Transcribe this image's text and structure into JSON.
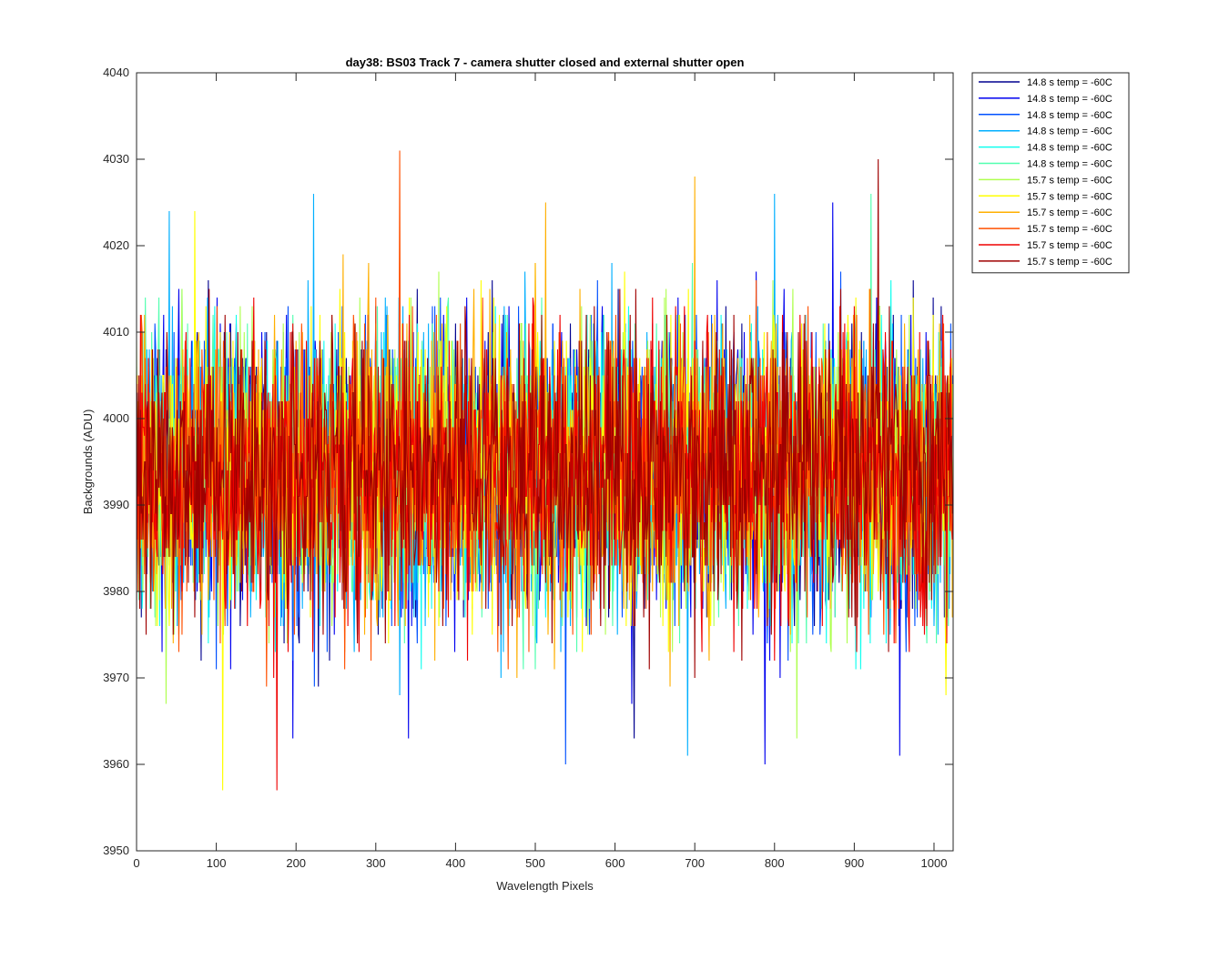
{
  "chart_data": {
    "type": "line",
    "title": "day38: BS03  Track 7 - camera shutter closed and external shutter open",
    "xlabel": "Wavelength Pixels",
    "ylabel": "Backgrounds (ADU)",
    "xlim": [
      0,
      1024
    ],
    "ylim": [
      3950,
      4040
    ],
    "xticks": [
      0,
      100,
      200,
      300,
      400,
      500,
      600,
      700,
      800,
      900,
      1000
    ],
    "yticks": [
      3950,
      3960,
      3970,
      3980,
      3990,
      4000,
      4010,
      4020,
      4030,
      4040
    ],
    "grid": false,
    "legend_position": "outside-top-right",
    "series": [
      {
        "name": "14.8 s temp = -60C",
        "color": "#00008f"
      },
      {
        "name": "14.8 s temp = -60C",
        "color": "#0000ef"
      },
      {
        "name": "14.8 s temp = -60C",
        "color": "#0050ff"
      },
      {
        "name": "14.8 s temp = -60C",
        "color": "#00afff"
      },
      {
        "name": "14.8 s temp = -60C",
        "color": "#10ffef"
      },
      {
        "name": "14.8 s temp = -60C",
        "color": "#50ffaf"
      },
      {
        "name": "15.7 s temp = -60C",
        "color": "#afff50"
      },
      {
        "name": "15.7 s temp = -60C",
        "color": "#ffff00"
      },
      {
        "name": "15.7 s temp = -60C",
        "color": "#ffaf00"
      },
      {
        "name": "15.7 s temp = -60C",
        "color": "#ff5000"
      },
      {
        "name": "15.7 s temp = -60C",
        "color": "#ef0000"
      },
      {
        "name": "15.7 s temp = -60C",
        "color": "#9f0000"
      }
    ],
    "noise_model": {
      "mean": 3994,
      "spread": 9,
      "points_per_series": 1024
    },
    "notable_extremes": [
      {
        "series": 9,
        "x": 330,
        "y": 4031
      },
      {
        "series": 11,
        "x": 930,
        "y": 4030
      },
      {
        "series": 8,
        "x": 700,
        "y": 4028
      },
      {
        "series": 3,
        "x": 222,
        "y": 4026
      },
      {
        "series": 3,
        "x": 800,
        "y": 4026
      },
      {
        "series": 5,
        "x": 921,
        "y": 4026
      },
      {
        "series": 3,
        "x": 41,
        "y": 4024
      },
      {
        "series": 7,
        "x": 73,
        "y": 4024
      },
      {
        "series": 1,
        "x": 873,
        "y": 4025
      },
      {
        "series": 8,
        "x": 513,
        "y": 4025
      },
      {
        "series": 7,
        "x": 108,
        "y": 3957
      },
      {
        "series": 10,
        "x": 176,
        "y": 3957
      },
      {
        "series": 2,
        "x": 538,
        "y": 3960
      },
      {
        "series": 1,
        "x": 788,
        "y": 3960
      },
      {
        "series": 1,
        "x": 957,
        "y": 3961
      },
      {
        "series": 3,
        "x": 691,
        "y": 3961
      },
      {
        "series": 1,
        "x": 341,
        "y": 3963
      },
      {
        "series": 1,
        "x": 196,
        "y": 3963
      },
      {
        "series": 6,
        "x": 828,
        "y": 3963
      },
      {
        "series": 0,
        "x": 624,
        "y": 3963
      }
    ]
  }
}
